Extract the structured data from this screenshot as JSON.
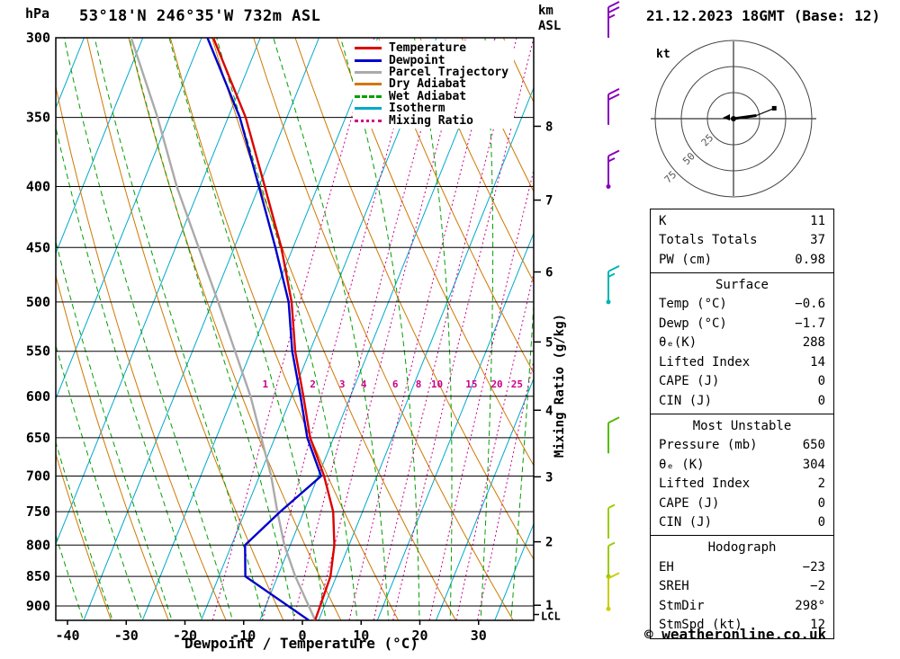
{
  "header": {
    "station": "53°18'N 246°35'W 732m ASL",
    "datetime": "21.12.2023 18GMT (Base: 12)",
    "left_axis_unit": "hPa",
    "right_axis_unit_line1": "km",
    "right_axis_unit_line2": "ASL"
  },
  "axes": {
    "bottom_label": "Dewpoint / Temperature (°C)",
    "right_label": "Mixing Ratio (g/kg)",
    "pressure_ticks": [
      300,
      350,
      400,
      450,
      500,
      550,
      600,
      650,
      700,
      750,
      800,
      850,
      900
    ],
    "temp_ticks": [
      -40,
      -30,
      -20,
      -10,
      0,
      10,
      20,
      30
    ],
    "km_ticks": [
      1,
      2,
      3,
      4,
      5,
      6,
      7,
      8
    ],
    "lcl_label": "LCL"
  },
  "legend": {
    "items": [
      {
        "label": "Temperature",
        "color": "#dd0000",
        "dash": "solid"
      },
      {
        "label": "Dewpoint",
        "color": "#0000cc",
        "dash": "solid"
      },
      {
        "label": "Parcel Trajectory",
        "color": "#aaaaaa",
        "dash": "solid"
      },
      {
        "label": "Dry Adiabat",
        "color": "#d07800",
        "dash": "solid"
      },
      {
        "label": "Wet Adiabat",
        "color": "#00a000",
        "dash": "dashed"
      },
      {
        "label": "Isotherm",
        "color": "#00a8cc",
        "dash": "solid"
      },
      {
        "label": "Mixing Ratio",
        "color": "#cc0088",
        "dash": "dotted"
      }
    ]
  },
  "chart_data": {
    "type": "skew-t-log-p",
    "pressure_range_hpa": [
      300,
      925
    ],
    "temp_axis_range_c": [
      -45,
      40
    ],
    "isotherm_step_c": 10,
    "mixing_ratio_lines_g_kg": [
      1,
      2,
      3,
      4,
      6,
      8,
      10,
      15,
      20,
      25
    ],
    "temperature_profile": [
      [
        925,
        -0.6
      ],
      [
        850,
        -1
      ],
      [
        800,
        -2.5
      ],
      [
        750,
        -5
      ],
      [
        700,
        -9
      ],
      [
        650,
        -14
      ],
      [
        600,
        -18
      ],
      [
        550,
        -22.5
      ],
      [
        500,
        -26.5
      ],
      [
        450,
        -32
      ],
      [
        400,
        -39
      ],
      [
        350,
        -47
      ],
      [
        300,
        -58
      ]
    ],
    "dewpoint_profile": [
      [
        925,
        -1.7
      ],
      [
        850,
        -15.5
      ],
      [
        800,
        -17.7
      ],
      [
        750,
        -14
      ],
      [
        700,
        -9.5
      ],
      [
        650,
        -14.5
      ],
      [
        600,
        -18.5
      ],
      [
        550,
        -23
      ],
      [
        500,
        -27
      ],
      [
        450,
        -33
      ],
      [
        400,
        -40
      ],
      [
        350,
        -48
      ],
      [
        300,
        -59
      ]
    ],
    "parcel_profile": [
      [
        925,
        -0.6
      ],
      [
        850,
        -7
      ],
      [
        800,
        -11
      ],
      [
        750,
        -14.5
      ],
      [
        700,
        -18
      ],
      [
        600,
        -27
      ],
      [
        500,
        -39
      ],
      [
        400,
        -54
      ],
      [
        350,
        -62
      ],
      [
        300,
        -72
      ]
    ],
    "wind_barbs": [
      {
        "pressure_hpa": 300,
        "speed_kt": 25,
        "color": "#8800bb",
        "dot": false
      },
      {
        "pressure_hpa": 355,
        "speed_kt": 20,
        "color": "#8800bb",
        "dot": false
      },
      {
        "pressure_hpa": 400,
        "speed_kt": 15,
        "color": "#8800bb",
        "dot": true
      },
      {
        "pressure_hpa": 500,
        "speed_kt": 15,
        "color": "#00b5b5",
        "dot": true
      },
      {
        "pressure_hpa": 670,
        "speed_kt": 10,
        "color": "#55bb00",
        "dot": false
      },
      {
        "pressure_hpa": 790,
        "speed_kt": 5,
        "color": "#99cc00",
        "dot": false
      },
      {
        "pressure_hpa": 850,
        "speed_kt": 5,
        "color": "#99cc00",
        "dot": true
      },
      {
        "pressure_hpa": 905,
        "speed_kt": 10,
        "color": "#cccc00",
        "dot": true
      }
    ]
  },
  "hodograph": {
    "unit_label": "kt",
    "rings_kt": [
      25,
      50,
      75
    ],
    "trace_uv_kt": [
      [
        0,
        0
      ],
      [
        22,
        3
      ],
      [
        39,
        10
      ]
    ],
    "storm_dir_deg": 298,
    "storm_speed_kt": 12
  },
  "table": {
    "sections": [
      {
        "name": "indices",
        "title": "",
        "rows": [
          [
            "K",
            "11"
          ],
          [
            "Totals Totals",
            "37"
          ],
          [
            "PW (cm)",
            "0.98"
          ]
        ]
      },
      {
        "name": "surface",
        "title": "Surface",
        "rows": [
          [
            "Temp (°C)",
            "−0.6"
          ],
          [
            "Dewp (°C)",
            "−1.7"
          ],
          [
            "θₑ(K)",
            "288"
          ],
          [
            "Lifted Index",
            "14"
          ],
          [
            "CAPE (J)",
            "0"
          ],
          [
            "CIN (J)",
            "0"
          ]
        ]
      },
      {
        "name": "most-unstable",
        "title": "Most Unstable",
        "rows": [
          [
            "Pressure (mb)",
            "650"
          ],
          [
            "θₑ (K)",
            "304"
          ],
          [
            "Lifted Index",
            "2"
          ],
          [
            "CAPE (J)",
            "0"
          ],
          [
            "CIN (J)",
            "0"
          ]
        ]
      },
      {
        "name": "hodograph",
        "title": "Hodograph",
        "rows": [
          [
            "EH",
            "−23"
          ],
          [
            "SREH",
            "−2"
          ],
          [
            "StmDir",
            "298°"
          ],
          [
            "StmSpd (kt)",
            "12"
          ]
        ]
      }
    ]
  },
  "footer": {
    "copyright": "© weatheronline.co.uk"
  }
}
